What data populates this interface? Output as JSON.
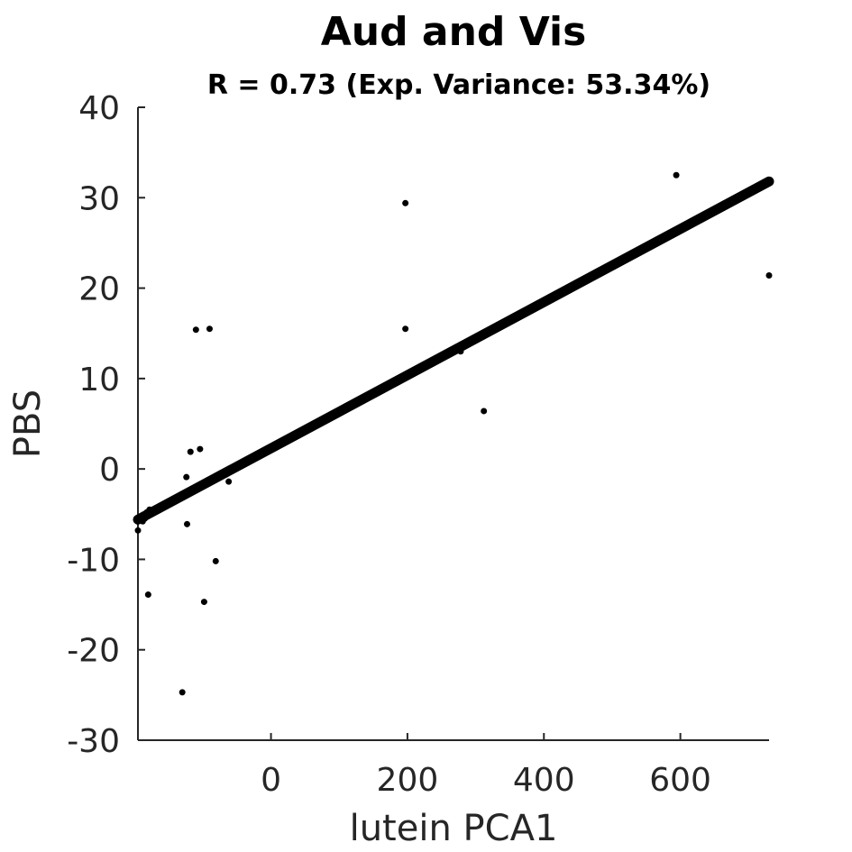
{
  "chart_data": {
    "type": "scatter",
    "title": "Aud and Vis",
    "subtitle": "R = 0.73 (Exp. Variance: 53.34%)",
    "xlabel": "lutein PCA1",
    "ylabel": "PBS",
    "xlim": [
      -195,
      730
    ],
    "ylim": [
      -30,
      40
    ],
    "xticks": [
      0,
      200,
      400,
      600
    ],
    "yticks": [
      -30,
      -20,
      -10,
      0,
      10,
      20,
      30,
      40
    ],
    "grid": false,
    "legend": "none",
    "colors": {
      "points": "#000000",
      "fit_line": "#000000",
      "axis": "#262626"
    },
    "points": [
      {
        "x": -195,
        "y": -6.8
      },
      {
        "x": -190,
        "y": -5.2
      },
      {
        "x": -188,
        "y": -5.8
      },
      {
        "x": -185,
        "y": -5.5
      },
      {
        "x": -182,
        "y": -4.8
      },
      {
        "x": -178,
        "y": -4.5
      },
      {
        "x": -180,
        "y": -13.9
      },
      {
        "x": -130,
        "y": -24.7
      },
      {
        "x": -124,
        "y": -0.9
      },
      {
        "x": -123,
        "y": -6.1
      },
      {
        "x": -118,
        "y": 1.9
      },
      {
        "x": -110,
        "y": 15.4
      },
      {
        "x": -104,
        "y": 2.2
      },
      {
        "x": -98,
        "y": -14.7
      },
      {
        "x": -90,
        "y": 15.5
      },
      {
        "x": -81,
        "y": -10.2
      },
      {
        "x": -62,
        "y": -1.4
      },
      {
        "x": 197,
        "y": 29.4
      },
      {
        "x": 197,
        "y": 15.5
      },
      {
        "x": 278,
        "y": 13.0
      },
      {
        "x": 312,
        "y": 6.4
      },
      {
        "x": 594,
        "y": 32.5
      },
      {
        "x": 730,
        "y": 21.4
      }
    ],
    "fit_line": {
      "x": [
        -195,
        730
      ],
      "y": [
        -5.6,
        31.8
      ]
    }
  }
}
